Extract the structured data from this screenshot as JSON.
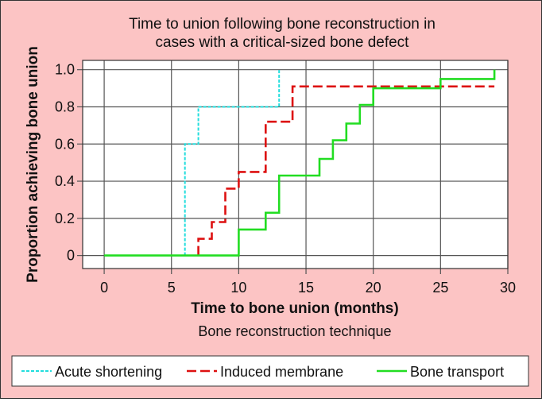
{
  "chart_data": {
    "type": "line",
    "step": true,
    "title_lines": [
      "Time to union following bone reconstruction in",
      "cases with a critical-sized bone defect"
    ],
    "xlabel": "Time to bone union (months)",
    "ylabel": "Proportion achieving bone union",
    "legend_title": "Bone reconstruction technique",
    "legend_placement": "bottom",
    "grid": true,
    "xlim": [
      -1.6,
      30
    ],
    "ylim": [
      -0.07,
      1.05
    ],
    "x_ticks": [
      0,
      5,
      10,
      15,
      20,
      25,
      30
    ],
    "y_ticks": [
      0,
      0.2,
      0.4,
      0.6,
      0.8,
      1.0
    ],
    "y_tick_labels": [
      "0",
      "0.2",
      "0.4",
      "0.6",
      "0.8",
      "1.0"
    ],
    "series": [
      {
        "name": "Acute shortening",
        "color": "#22dddd",
        "dash": "dotted",
        "points": [
          [
            6,
            0
          ],
          [
            6,
            0.6
          ],
          [
            7,
            0.6
          ],
          [
            7,
            0.8
          ],
          [
            13,
            0.8
          ],
          [
            13,
            1.0
          ]
        ]
      },
      {
        "name": "Induced membrane",
        "color": "#dd1111",
        "dash": "dashed",
        "points": [
          [
            7,
            0
          ],
          [
            7,
            0.09
          ],
          [
            8,
            0.09
          ],
          [
            8,
            0.18
          ],
          [
            9,
            0.18
          ],
          [
            9,
            0.36
          ],
          [
            10,
            0.36
          ],
          [
            10,
            0.45
          ],
          [
            12,
            0.45
          ],
          [
            12,
            0.72
          ],
          [
            14,
            0.72
          ],
          [
            14,
            0.91
          ],
          [
            29,
            0.91
          ]
        ]
      },
      {
        "name": "Bone transport",
        "color": "#22dd22",
        "dash": "solid",
        "points": [
          [
            0,
            0
          ],
          [
            10,
            0
          ],
          [
            10,
            0.14
          ],
          [
            12,
            0.14
          ],
          [
            12,
            0.23
          ],
          [
            13,
            0.23
          ],
          [
            13,
            0.43
          ],
          [
            16,
            0.43
          ],
          [
            16,
            0.52
          ],
          [
            17,
            0.52
          ],
          [
            17,
            0.62
          ],
          [
            18,
            0.62
          ],
          [
            18,
            0.71
          ],
          [
            19,
            0.71
          ],
          [
            19,
            0.81
          ],
          [
            20,
            0.81
          ],
          [
            20,
            0.9
          ],
          [
            25,
            0.9
          ],
          [
            25,
            0.95
          ],
          [
            29,
            0.95
          ],
          [
            29,
            1.0
          ]
        ]
      }
    ]
  },
  "colors": {
    "background": "#fcc4c4",
    "plot_background": "#ffffff",
    "legend_background": "#ffffff",
    "grid": "#555555",
    "text": "#111111"
  }
}
